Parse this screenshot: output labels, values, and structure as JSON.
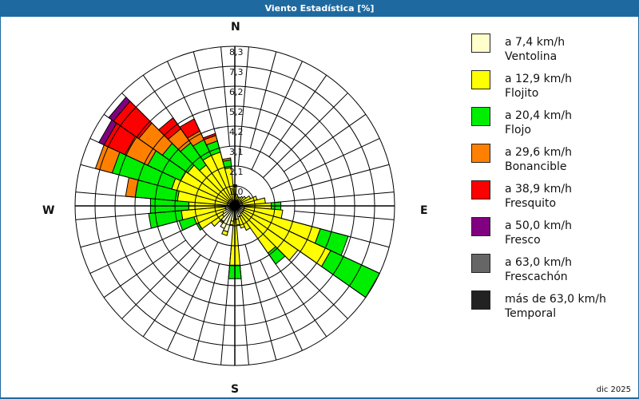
{
  "title": "Viento Estadística [%]",
  "date_label": "dic 2025",
  "cardinals": {
    "n": "N",
    "e": "E",
    "s": "S",
    "w": "W"
  },
  "legend": [
    {
      "range": "a 7,4 km/h",
      "name": "Ventolina",
      "color": "#ffffcc"
    },
    {
      "range": "a 12,9 km/h",
      "name": "Flojito",
      "color": "#ffff00"
    },
    {
      "range": "a 20,4 km/h",
      "name": "Flojo",
      "color": "#00ee00"
    },
    {
      "range": "a 29,6 km/h",
      "name": "Bonancible",
      "color": "#ff8000"
    },
    {
      "range": "a 38,9 km/h",
      "name": "Fresquito",
      "color": "#ff0000"
    },
    {
      "range": "a 50,0 km/h",
      "name": "Fresco",
      "color": "#800080"
    },
    {
      "range": "a 63,0 km/h",
      "name": "Frescachón",
      "color": "#666666"
    },
    {
      "range": "más de 63,0 km/h",
      "name": "Temporal",
      "color": "#222222"
    }
  ],
  "chart_data": {
    "type": "wind-rose",
    "title": "Viento Estadística [%]",
    "ring_labels": [
      "1,0",
      "2,1",
      "3,1",
      "4,2",
      "5,2",
      "6,2",
      "7,3",
      "8,3"
    ],
    "rmax": 8.3,
    "sector_count": 36,
    "sector_width_deg": 10,
    "classes": [
      "Ventolina",
      "Flojito",
      "Flojo",
      "Bonancible",
      "Fresquito",
      "Fresco",
      "Frescachón",
      "Temporal"
    ],
    "note": "Cumulative radius (%) per speed class per sector, direction in degrees clockwise from N; values estimated from pixels",
    "sectors": [
      {
        "dir": 0,
        "cum": [
          0.3,
          1.0,
          1.1,
          1.1,
          1.1,
          1.1,
          1.1,
          1.1
        ]
      },
      {
        "dir": 10,
        "cum": [
          0.3,
          0.6,
          0.6,
          0.6,
          0.6,
          0.6,
          0.6,
          0.6
        ]
      },
      {
        "dir": 20,
        "cum": [
          0.3,
          0.5,
          0.5,
          0.5,
          0.5,
          0.5,
          0.5,
          0.5
        ]
      },
      {
        "dir": 30,
        "cum": [
          0.3,
          0.5,
          0.5,
          0.5,
          0.5,
          0.5,
          0.5,
          0.5
        ]
      },
      {
        "dir": 40,
        "cum": [
          0.3,
          0.6,
          0.6,
          0.6,
          0.6,
          0.6,
          0.6,
          0.6
        ]
      },
      {
        "dir": 50,
        "cum": [
          0.4,
          0.7,
          0.7,
          0.7,
          0.7,
          0.7,
          0.7,
          0.7
        ]
      },
      {
        "dir": 60,
        "cum": [
          0.4,
          0.9,
          0.9,
          0.9,
          0.9,
          0.9,
          0.9,
          0.9
        ]
      },
      {
        "dir": 70,
        "cum": [
          0.4,
          1.2,
          1.2,
          1.2,
          1.2,
          1.2,
          1.2,
          1.2
        ]
      },
      {
        "dir": 80,
        "cum": [
          0.4,
          1.6,
          1.6,
          1.6,
          1.6,
          1.6,
          1.6,
          1.6
        ]
      },
      {
        "dir": 90,
        "cum": [
          0.4,
          1.9,
          2.4,
          2.4,
          2.4,
          2.4,
          2.4,
          2.4
        ]
      },
      {
        "dir": 100,
        "cum": [
          0.5,
          2.5,
          2.5,
          2.5,
          2.5,
          2.5,
          2.5,
          2.5
        ]
      },
      {
        "dir": 110,
        "cum": [
          0.5,
          4.6,
          6.1,
          6.1,
          6.1,
          6.1,
          6.1,
          6.1
        ]
      },
      {
        "dir": 120,
        "cum": [
          0.5,
          5.5,
          8.3,
          8.3,
          8.3,
          8.3,
          8.3,
          8.3
        ]
      },
      {
        "dir": 130,
        "cum": [
          0.5,
          4.0,
          4.0,
          4.0,
          4.0,
          4.0,
          4.0,
          4.0
        ]
      },
      {
        "dir": 140,
        "cum": [
          0.5,
          3.0,
          3.7,
          3.7,
          3.7,
          3.7,
          3.7,
          3.7
        ]
      },
      {
        "dir": 150,
        "cum": [
          0.6,
          1.4,
          1.4,
          1.4,
          1.4,
          1.4,
          1.4,
          1.4
        ]
      },
      {
        "dir": 160,
        "cum": [
          0.6,
          1.2,
          1.2,
          1.2,
          1.2,
          1.2,
          1.2,
          1.2
        ]
      },
      {
        "dir": 170,
        "cum": [
          0.7,
          1.0,
          1.0,
          1.0,
          1.0,
          1.0,
          1.0,
          1.0
        ]
      },
      {
        "dir": 180,
        "cum": [
          0.7,
          3.1,
          3.8,
          3.8,
          3.8,
          3.8,
          3.8,
          3.8
        ]
      },
      {
        "dir": 190,
        "cum": [
          0.8,
          1.0,
          1.0,
          1.0,
          1.0,
          1.0,
          1.0,
          1.0
        ]
      },
      {
        "dir": 200,
        "cum": [
          1.4,
          1.6,
          1.6,
          1.6,
          1.6,
          1.6,
          1.6,
          1.6
        ]
      },
      {
        "dir": 210,
        "cum": [
          1.3,
          1.3,
          1.3,
          1.3,
          1.3,
          1.3,
          1.3,
          1.3
        ]
      },
      {
        "dir": 220,
        "cum": [
          1.0,
          1.1,
          1.1,
          1.1,
          1.1,
          1.1,
          1.1,
          1.1
        ]
      },
      {
        "dir": 230,
        "cum": [
          0.8,
          1.5,
          1.5,
          1.5,
          1.5,
          1.5,
          1.5,
          1.5
        ]
      },
      {
        "dir": 240,
        "cum": [
          0.7,
          2.1,
          2.2,
          2.2,
          2.2,
          2.2,
          2.2,
          2.2
        ]
      },
      {
        "dir": 250,
        "cum": [
          0.5,
          2.2,
          3.0,
          3.0,
          3.0,
          3.0,
          3.0,
          3.0
        ]
      },
      {
        "dir": 260,
        "cum": [
          0.5,
          2.8,
          4.5,
          4.5,
          4.5,
          4.5,
          4.5,
          4.5
        ]
      },
      {
        "dir": 270,
        "cum": [
          0.4,
          2.4,
          4.4,
          4.4,
          4.4,
          4.4,
          4.4,
          4.4
        ]
      },
      {
        "dir": 280,
        "cum": [
          0.4,
          3.0,
          5.2,
          5.7,
          5.7,
          5.7,
          5.7,
          5.7
        ]
      },
      {
        "dir": 290,
        "cum": [
          0.4,
          3.4,
          6.6,
          7.5,
          7.5,
          7.5,
          7.5,
          7.5
        ]
      },
      {
        "dir": 300,
        "cum": [
          0.4,
          3.1,
          5.0,
          6.3,
          7.5,
          7.8,
          7.8,
          7.8
        ]
      },
      {
        "dir": 310,
        "cum": [
          0.4,
          3.0,
          4.6,
          6.1,
          7.7,
          8.0,
          8.0,
          8.0
        ]
      },
      {
        "dir": 320,
        "cum": [
          0.4,
          2.6,
          4.0,
          4.9,
          5.6,
          5.6,
          5.6,
          5.6
        ]
      },
      {
        "dir": 330,
        "cum": [
          0.4,
          2.9,
          3.8,
          4.3,
          5.0,
          5.0,
          5.0,
          5.0
        ]
      },
      {
        "dir": 340,
        "cum": [
          0.3,
          2.9,
          3.5,
          3.8,
          3.9,
          3.9,
          3.9,
          3.9
        ]
      },
      {
        "dir": 350,
        "cum": [
          0.3,
          2.0,
          2.4,
          2.5,
          2.5,
          2.5,
          2.5,
          2.5
        ]
      }
    ],
    "legend_position": "right"
  }
}
